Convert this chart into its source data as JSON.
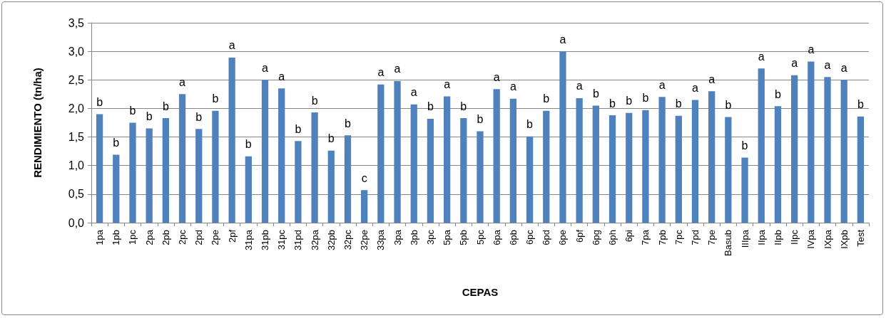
{
  "chart_data": {
    "type": "bar",
    "xlabel": "CEPAS",
    "ylabel": "RENDIMIENTO (tn/ha)",
    "categories": [
      "1pa",
      "1pb",
      "1pc",
      "2pa",
      "2pb",
      "2pc",
      "2pd",
      "2pe",
      "2pf",
      "31pa",
      "31pb",
      "31pc",
      "31pd",
      "32pa",
      "32pb",
      "32pc",
      "32pe",
      "33pa",
      "3pa",
      "3pb",
      "3pc",
      "5pa",
      "5pb",
      "5pc",
      "6pa",
      "6pb",
      "6pc",
      "6pd",
      "6pe",
      "6pf",
      "6pg",
      "6ph",
      "6pi",
      "7pa",
      "7pb",
      "7pc",
      "7pd",
      "7pe",
      "Basub",
      "IIIpa",
      "IIpa",
      "IIpb",
      "IIpc",
      "IVpa",
      "IXpa",
      "IXpb",
      "Test"
    ],
    "values": [
      1.9,
      1.19,
      1.75,
      1.65,
      1.83,
      2.25,
      1.64,
      1.96,
      2.89,
      1.16,
      2.5,
      2.35,
      1.43,
      1.93,
      1.26,
      1.53,
      0.57,
      2.42,
      2.48,
      2.07,
      1.82,
      2.21,
      1.83,
      1.6,
      2.34,
      2.17,
      1.51,
      1.96,
      3.0,
      2.18,
      2.05,
      1.88,
      1.92,
      1.97,
      2.2,
      1.87,
      2.15,
      2.3,
      1.85,
      1.14,
      2.7,
      2.04,
      2.58,
      2.82,
      2.55,
      2.5,
      1.86
    ],
    "value_labels": [
      "b",
      "b",
      "b",
      "b",
      "b",
      "a",
      "b",
      "b",
      "a",
      "b",
      "a",
      "a",
      "b",
      "b",
      "b",
      "b",
      "c",
      "a",
      "a",
      "a",
      "b",
      "a",
      "b",
      "b",
      "a",
      "a",
      "b",
      "b",
      "a",
      "a",
      "b",
      "b",
      "b",
      "b",
      "a",
      "b",
      "a",
      "a",
      "b",
      "b",
      "a",
      "b",
      "a",
      "a",
      "a",
      "a",
      "b"
    ],
    "color": "#4f81bd",
    "ylim": [
      0,
      3.5
    ],
    "yticks": [
      {
        "value": 0,
        "label": "0,0"
      },
      {
        "value": 0.5,
        "label": "0,5"
      },
      {
        "value": 1,
        "label": "1,0"
      },
      {
        "value": 1.5,
        "label": "1,5"
      },
      {
        "value": 2,
        "label": "2,0"
      },
      {
        "value": 2.5,
        "label": "2,5"
      },
      {
        "value": 3,
        "label": "3,0"
      },
      {
        "value": 3.5,
        "label": "3,5"
      }
    ],
    "grid": "y"
  }
}
